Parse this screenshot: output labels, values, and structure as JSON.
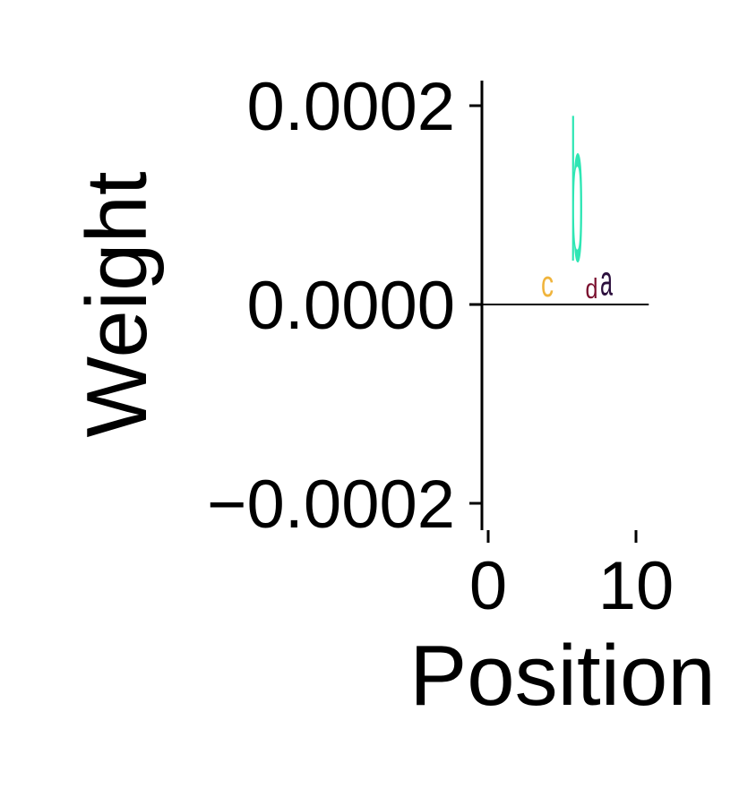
{
  "chart_data": {
    "type": "logo",
    "xlabel": "Position",
    "ylabel": "Weight",
    "xlim": [
      -0.5,
      10.5
    ],
    "ylim": [
      -0.000225,
      0.000225
    ],
    "x_ticks": [
      {
        "value": 0,
        "label": "0"
      },
      {
        "value": 10,
        "label": "10"
      }
    ],
    "y_ticks": [
      {
        "value": 0.0002,
        "label": "0.0002"
      },
      {
        "value": 0.0,
        "label": "0.0000"
      },
      {
        "value": -0.0002,
        "label": "−0.0002"
      }
    ],
    "baseline": 0,
    "letters": [
      {
        "char": "c",
        "position": 4,
        "bottom": 0,
        "top": 4.2e-05,
        "color": "#f0b43c"
      },
      {
        "char": "b",
        "position": 6,
        "bottom": 0,
        "top": 0.000225,
        "color": "#2ee6b4"
      },
      {
        "char": "d",
        "position": 7,
        "bottom": 0,
        "top": 3.2e-05,
        "color": "#7a0f2e"
      },
      {
        "char": "a",
        "position": 8,
        "bottom": 0,
        "top": 4.8e-05,
        "color": "#2c0f3d"
      }
    ]
  }
}
